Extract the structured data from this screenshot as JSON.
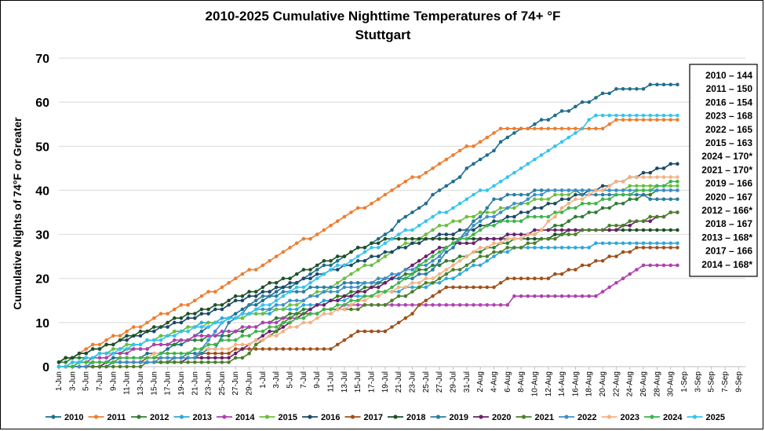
{
  "chart_data": {
    "type": "line",
    "title": "2010-2025 Cumulative Nighttime Temperatures of 74+ °F",
    "subtitle": "Stuttgart",
    "ylabel": "Cumulative Nights of 74°F or Greater",
    "xlabel": "",
    "ylim": [
      0,
      70
    ],
    "yticks": [
      0,
      10,
      20,
      30,
      40,
      50,
      60,
      70
    ],
    "x_start": "2010-06-01",
    "x_end_index": 101,
    "xticks": [
      "1-Jun",
      "3-Jun",
      "5-Jun",
      "7-Jun",
      "9-Jun",
      "11-Jun",
      "13-Jun",
      "15-Jun",
      "17-Jun",
      "19-Jun",
      "21-Jun",
      "23-Jun",
      "25-Jun",
      "27-Jun",
      "29-Jun",
      "1-Jul",
      "3-Jul",
      "5-Jul",
      "7-Jul",
      "9-Jul",
      "11-Jul",
      "13-Jul",
      "15-Jul",
      "17-Jul",
      "19-Jul",
      "21-Jul",
      "23-Jul",
      "25-Jul",
      "27-Jul",
      "29-Jul",
      "31-Jul",
      "2-Aug",
      "4-Aug",
      "6-Aug",
      "8-Aug",
      "10-Aug",
      "12-Aug",
      "14-Aug",
      "16-Aug",
      "18-Aug",
      "20-Aug",
      "22-Aug",
      "24-Aug",
      "26-Aug",
      "28-Aug",
      "30-Aug",
      "1-Sep",
      "3-Sep",
      "5-Sep",
      "7-Sep",
      "9-Sep"
    ],
    "grid": true,
    "legend_position": "bottom",
    "series": [
      {
        "name": "2010",
        "color": "#1F6E8C",
        "last_day": 91,
        "pts": [
          [
            0,
            0
          ],
          [
            15,
            3
          ],
          [
            47,
            29
          ],
          [
            67,
            53
          ],
          [
            82,
            63
          ],
          [
            91,
            64
          ]
        ]
      },
      {
        "name": "2011",
        "color": "#ED7D31",
        "last_day": 91,
        "pts": [
          [
            0,
            1
          ],
          [
            10,
            8
          ],
          [
            24,
            18
          ],
          [
            65,
            54
          ],
          [
            80,
            54
          ],
          [
            82,
            56
          ],
          [
            91,
            56
          ]
        ]
      },
      {
        "name": "2012",
        "color": "#2E7D32",
        "last_day": 91,
        "pts": [
          [
            0,
            1
          ],
          [
            16,
            5
          ],
          [
            27,
            8
          ],
          [
            38,
            14
          ],
          [
            64,
            27
          ],
          [
            88,
            40
          ],
          [
            91,
            40
          ]
        ]
      },
      {
        "name": "2013",
        "color": "#2EA8D8",
        "last_day": 91,
        "pts": [
          [
            0,
            0
          ],
          [
            22,
            10
          ],
          [
            56,
            19
          ],
          [
            67,
            27
          ],
          [
            91,
            28
          ]
        ]
      },
      {
        "name": "2014",
        "color": "#B040B0",
        "last_day": 91,
        "pts": [
          [
            0,
            0
          ],
          [
            40,
            13
          ],
          [
            44,
            14
          ],
          [
            66,
            14
          ],
          [
            67,
            16
          ],
          [
            79,
            16
          ],
          [
            86,
            23
          ],
          [
            91,
            23
          ]
        ]
      },
      {
        "name": "2015",
        "color": "#6ABF3F",
        "last_day": 91,
        "pts": [
          [
            0,
            0
          ],
          [
            20,
            9
          ],
          [
            35,
            14
          ],
          [
            55,
            31
          ],
          [
            60,
            34
          ],
          [
            77,
            40
          ],
          [
            91,
            41
          ]
        ]
      },
      {
        "name": "2016",
        "color": "#1A4A66",
        "last_day": 91,
        "pts": [
          [
            0,
            1
          ],
          [
            25,
            14
          ],
          [
            37,
            20
          ],
          [
            52,
            28
          ],
          [
            65,
            33
          ],
          [
            91,
            46
          ]
        ]
      },
      {
        "name": "2017",
        "color": "#A0501A",
        "last_day": 91,
        "pts": [
          [
            0,
            0
          ],
          [
            25,
            3
          ],
          [
            27,
            4
          ],
          [
            40,
            4
          ],
          [
            44,
            8
          ],
          [
            48,
            8
          ],
          [
            57,
            18
          ],
          [
            64,
            18
          ],
          [
            66,
            20
          ],
          [
            72,
            20
          ],
          [
            85,
            27
          ],
          [
            91,
            27
          ]
        ]
      },
      {
        "name": "2018",
        "color": "#1E5128",
        "last_day": 91,
        "pts": [
          [
            0,
            1
          ],
          [
            25,
            15
          ],
          [
            48,
            29
          ],
          [
            72,
            29
          ],
          [
            76,
            31
          ],
          [
            91,
            31
          ]
        ]
      },
      {
        "name": "2019",
        "color": "#2A7DA0",
        "last_day": 91,
        "pts": [
          [
            0,
            0
          ],
          [
            15,
            1
          ],
          [
            23,
            4
          ],
          [
            25,
            10
          ],
          [
            30,
            16
          ],
          [
            44,
            19
          ],
          [
            52,
            20
          ],
          [
            55,
            22
          ],
          [
            64,
            38
          ],
          [
            72,
            40
          ],
          [
            91,
            38
          ]
        ]
      },
      {
        "name": "2020",
        "color": "#6A1E6A",
        "last_day": 91,
        "pts": [
          [
            0,
            0
          ],
          [
            25,
            2
          ],
          [
            37,
            13
          ],
          [
            47,
            18
          ],
          [
            56,
            27
          ],
          [
            63,
            29
          ],
          [
            72,
            31
          ],
          [
            81,
            31
          ],
          [
            91,
            35
          ]
        ]
      },
      {
        "name": "2021",
        "color": "#4B7F2A",
        "last_day": 91,
        "pts": [
          [
            0,
            0
          ],
          [
            25,
            1
          ],
          [
            27,
            2
          ],
          [
            35,
            12
          ],
          [
            48,
            14
          ],
          [
            56,
            20
          ],
          [
            64,
            26
          ],
          [
            75,
            30
          ],
          [
            82,
            32
          ],
          [
            91,
            35
          ]
        ]
      },
      {
        "name": "2022",
        "color": "#3F8FC8",
        "last_day": 91,
        "pts": [
          [
            0,
            0
          ],
          [
            20,
            2
          ],
          [
            24,
            10
          ],
          [
            30,
            13
          ],
          [
            48,
            20
          ],
          [
            55,
            24
          ],
          [
            62,
            33
          ],
          [
            72,
            40
          ],
          [
            91,
            40
          ]
        ]
      },
      {
        "name": "2023",
        "color": "#F4B183",
        "last_day": 91,
        "pts": [
          [
            0,
            0
          ],
          [
            28,
            5
          ],
          [
            43,
            14
          ],
          [
            51,
            18
          ],
          [
            55,
            20
          ],
          [
            62,
            27
          ],
          [
            70,
            30
          ],
          [
            75,
            37
          ],
          [
            84,
            43
          ],
          [
            91,
            43
          ]
        ]
      },
      {
        "name": "2024",
        "color": "#3DB54A",
        "last_day": 91,
        "pts": [
          [
            0,
            0
          ],
          [
            18,
            3
          ],
          [
            25,
            6
          ],
          [
            48,
            17
          ],
          [
            58,
            28
          ],
          [
            65,
            33
          ],
          [
            72,
            34
          ],
          [
            78,
            37
          ],
          [
            86,
            40
          ],
          [
            91,
            42
          ]
        ]
      },
      {
        "name": "2025",
        "color": "#33C4EE",
        "last_day": 91,
        "pts": [
          [
            0,
            0
          ],
          [
            28,
            12
          ],
          [
            54,
            33
          ],
          [
            65,
            42
          ],
          [
            77,
            54
          ],
          [
            79,
            57
          ],
          [
            91,
            57
          ]
        ]
      }
    ],
    "annotations": [
      "2010 – 144",
      "2011 – 150",
      "2016 – 154",
      "2023 – 168",
      "2022 – 165",
      "2015 – 163",
      "2024 – 170*",
      "2021 – 170*",
      "2019 – 166",
      "2020 – 167",
      "2012 – 166*",
      "2018 – 167",
      "2013 – 168*",
      "2017 – 166",
      "2014 – 168*"
    ]
  }
}
